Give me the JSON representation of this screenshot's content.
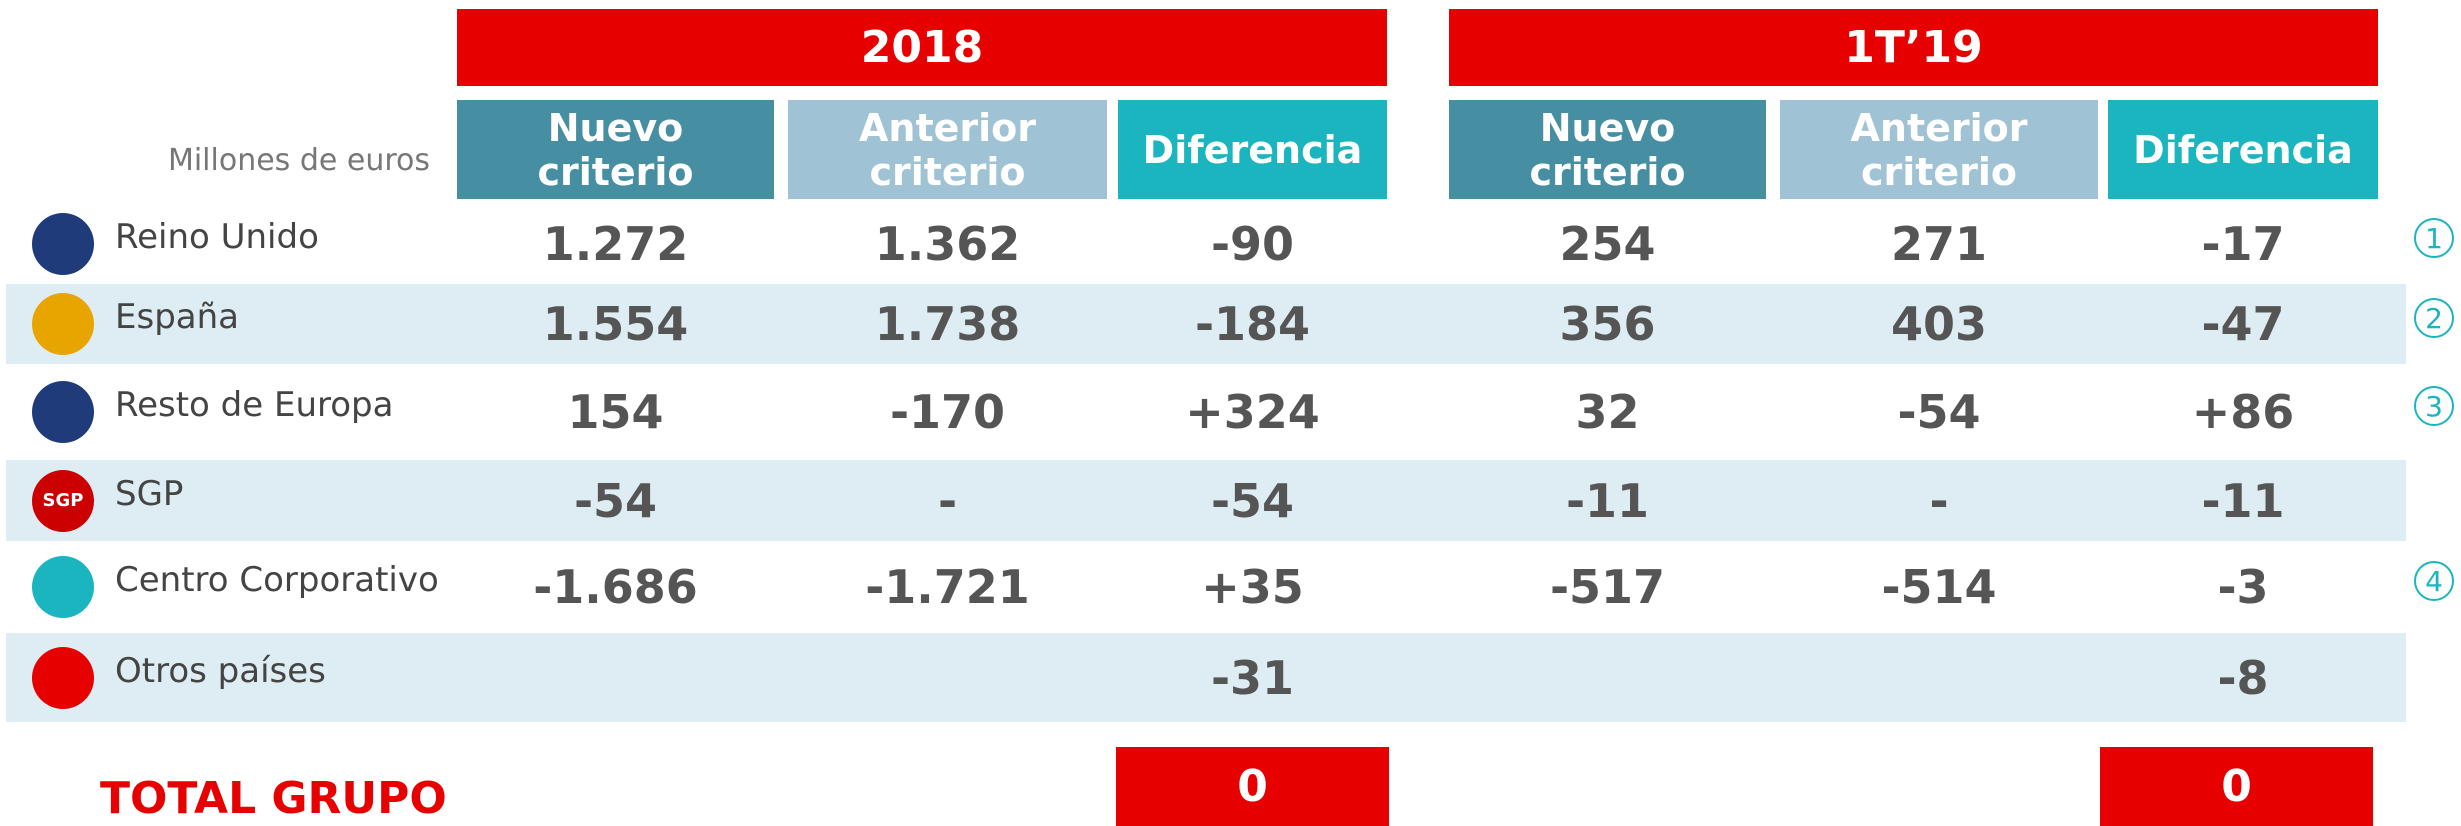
{
  "header": {
    "unit": "Millones de euros",
    "groups": [
      {
        "title": "2018",
        "columns": [
          "Nuevo criterio",
          "Anterior criterio",
          "Diferencia"
        ]
      },
      {
        "title": "1T’19",
        "columns": [
          "Nuevo criterio",
          "Anterior criterio",
          "Diferencia"
        ]
      }
    ]
  },
  "table": {
    "rows": [
      {
        "label": "Reino Unido",
        "values": [
          "1.272",
          "1.362",
          "-90",
          "254",
          "271",
          "-17"
        ],
        "note": "1"
      },
      {
        "label": "España",
        "values": [
          "1.554",
          "1.738",
          "-184",
          "356",
          "403",
          "-47"
        ],
        "note": "2"
      },
      {
        "label": "Resto de Europa",
        "values": [
          "154",
          "-170",
          "+324",
          "32",
          "-54",
          "+86"
        ],
        "note": "3"
      },
      {
        "label": "SGP",
        "icon": "SGP",
        "values": [
          "-54",
          "-",
          "-54",
          "-11",
          "-",
          "-11"
        ]
      },
      {
        "label": "Centro Corporativo",
        "values": [
          "-1.686",
          "-1.721",
          "+35",
          "-517",
          "-514",
          "-3"
        ],
        "note": "4"
      },
      {
        "label": "Otros países",
        "values": [
          null,
          null,
          "-31",
          null,
          null,
          "-8"
        ]
      }
    ]
  },
  "total": {
    "label": "TOTAL GRUPO",
    "values": [
      "0",
      "0"
    ]
  }
}
